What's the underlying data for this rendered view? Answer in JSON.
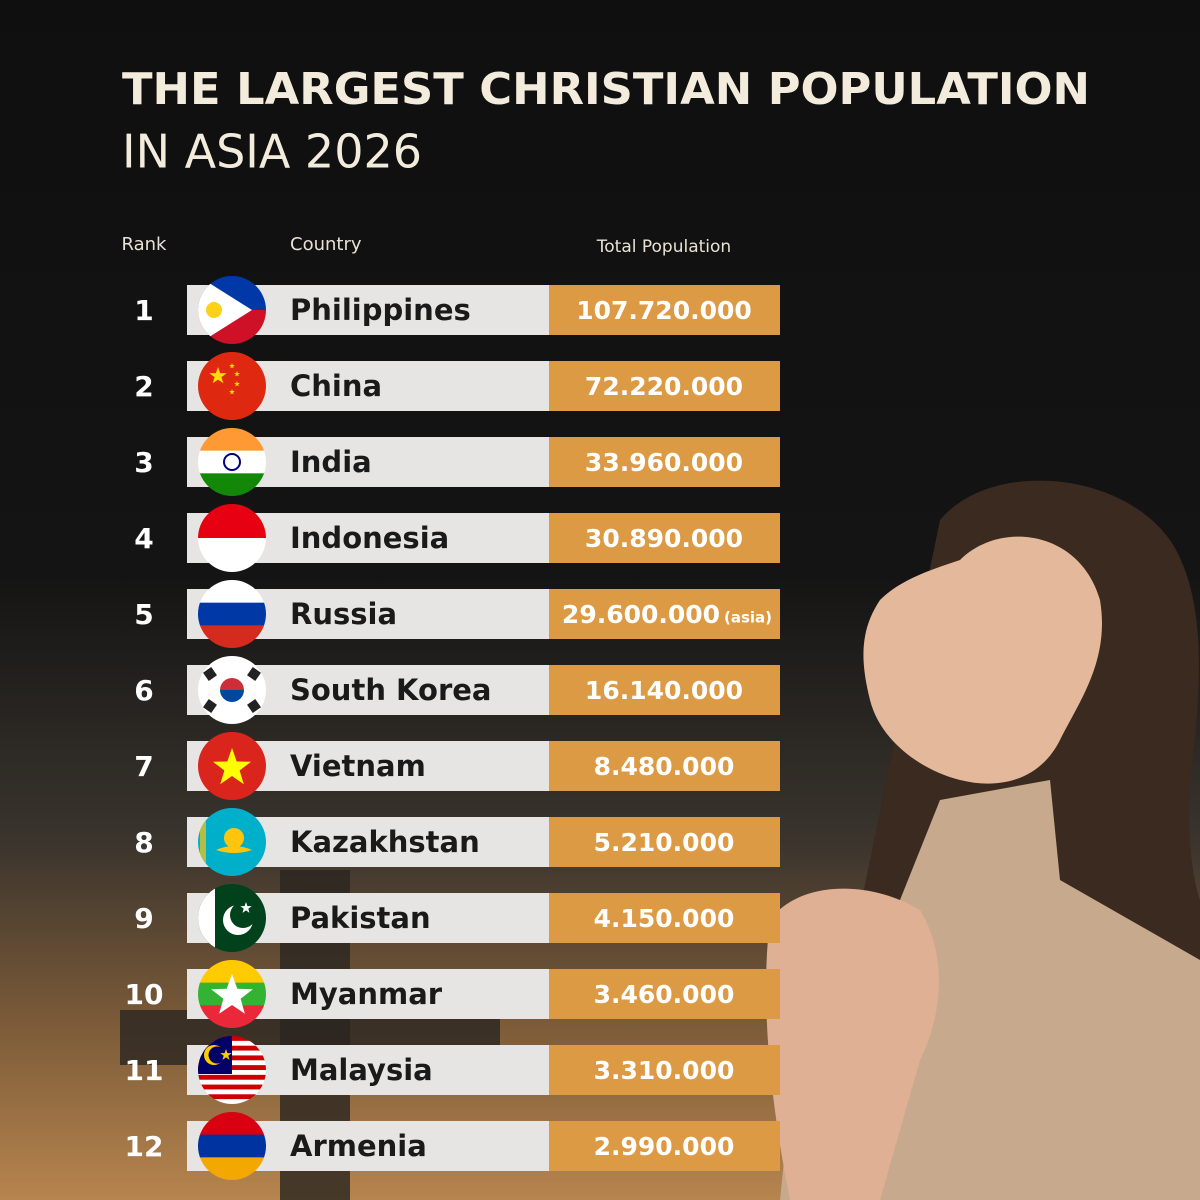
{
  "header": {
    "title": "THE LARGEST CHRISTIAN POPULATION",
    "subtitle": "IN ASIA 2026"
  },
  "table": {
    "columns": [
      "Rank",
      "Country",
      "Total Population"
    ],
    "rows": [
      [
        "1",
        "Philippines",
        "107.720.000"
      ],
      [
        "2",
        "China",
        "72.220.000"
      ],
      [
        "3",
        "India",
        "33.960.000"
      ],
      [
        "4",
        "Indonesia",
        "30.890.000"
      ],
      [
        "5",
        "Russia",
        "29.600.000",
        "(asia)"
      ],
      [
        "6",
        "South Korea",
        "16.140.000"
      ],
      [
        "7",
        "Vietnam",
        "8.480.000"
      ],
      [
        "8",
        "Kazakhstan",
        "5.210.000"
      ],
      [
        "9",
        "Pakistan",
        "4.150.000"
      ],
      [
        "10",
        "Myanmar",
        "3.460.000"
      ],
      [
        "11",
        "Malaysia",
        "3.310.000"
      ],
      [
        "12",
        "Armenia",
        "2.990.000"
      ]
    ]
  }
}
